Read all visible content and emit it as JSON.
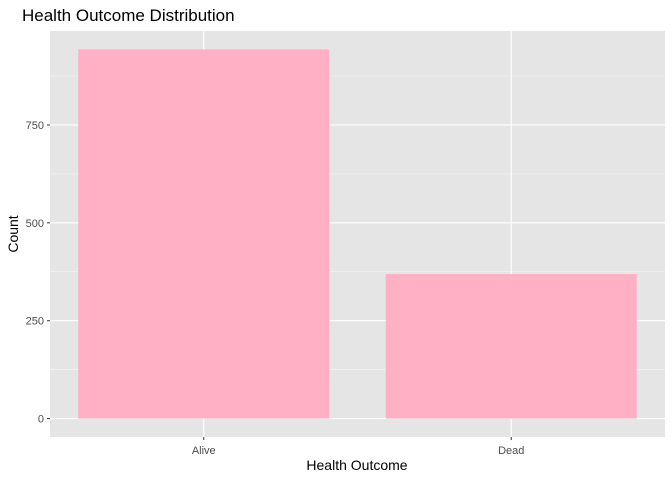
{
  "chart_data": {
    "type": "bar",
    "title": "Health Outcome Distribution",
    "xlabel": "Health Outcome",
    "ylabel": "Count",
    "categories": [
      "Alive",
      "Dead"
    ],
    "values": [
      943,
      369
    ],
    "ylim": [
      -47,
      990
    ],
    "yticks": [
      0,
      250,
      500,
      750
    ],
    "ytick_labels": [
      "0",
      "250",
      "500",
      "750"
    ],
    "grid": true,
    "colors": {
      "bar": "#FFB0C4",
      "panel": "#E5E5E5",
      "grid_major": "#FFFFFF",
      "grid_minor": "#F2F2F2",
      "tick": "#333333",
      "tick_label": "#4D4D4D"
    }
  }
}
